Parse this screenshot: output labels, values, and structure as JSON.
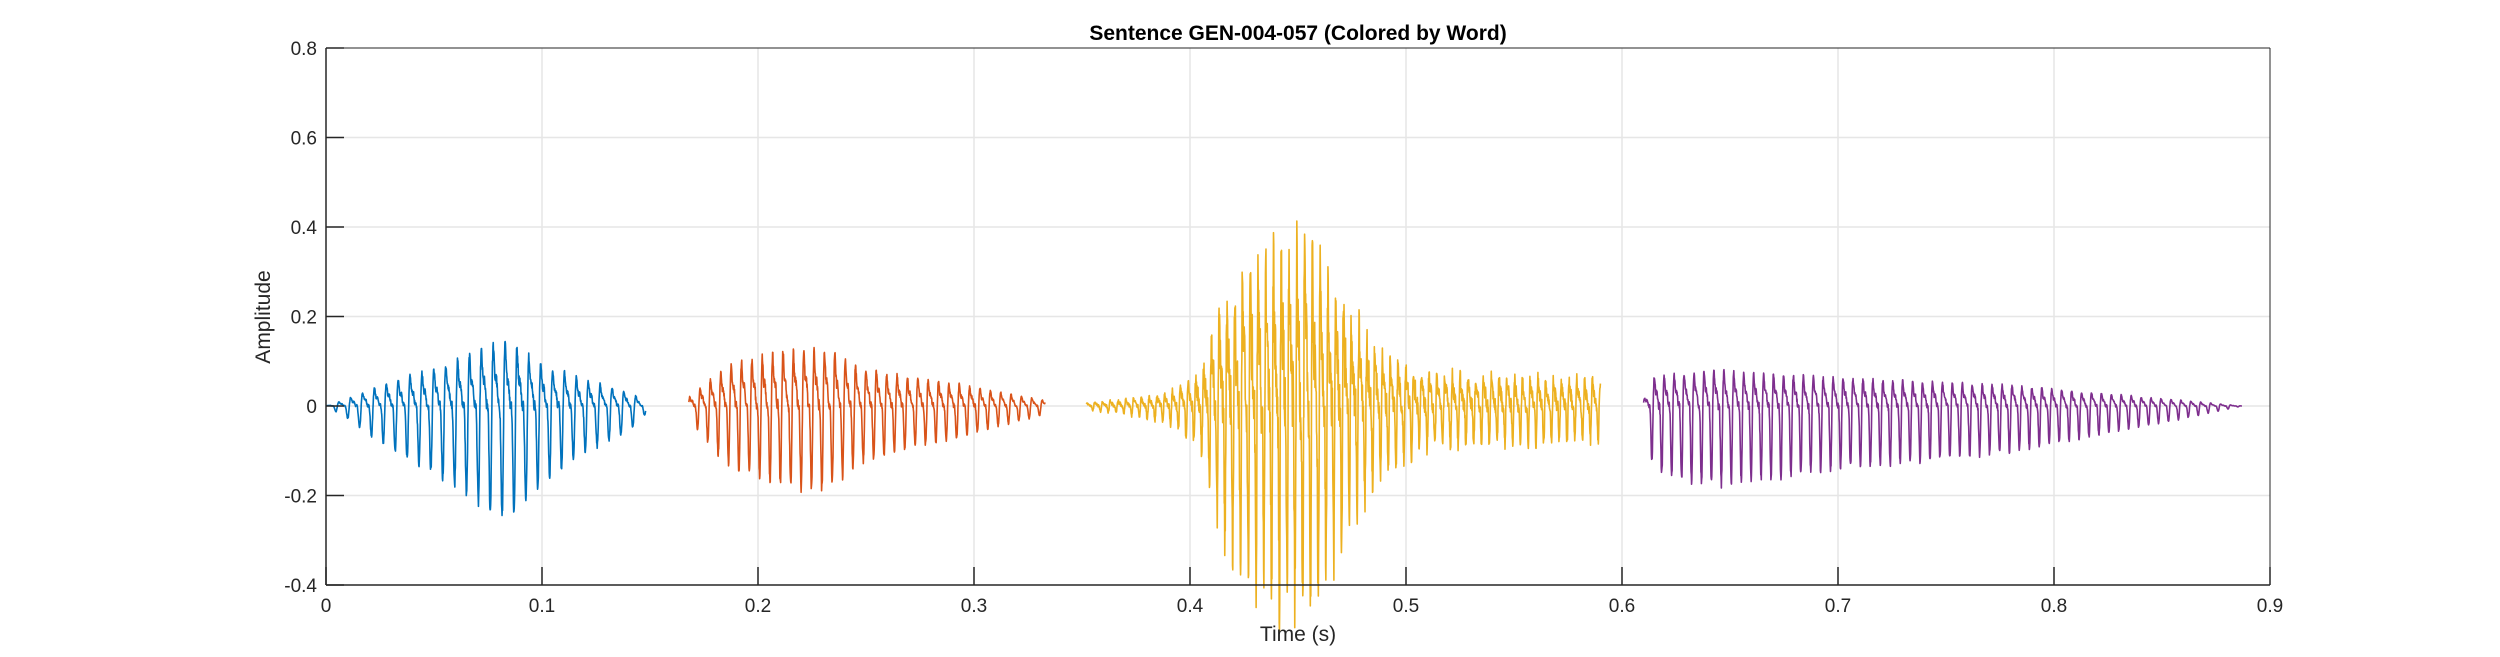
{
  "chart_data": {
    "type": "line",
    "title": "Sentence GEN-004-057 (Colored by Word)",
    "xlabel": "Time (s)",
    "ylabel": "Amplitude",
    "xlim": [
      0,
      0.9
    ],
    "ylim": [
      -0.4,
      0.8
    ],
    "xticks": [
      0,
      0.1,
      0.2,
      0.3,
      0.4,
      0.5,
      0.6,
      0.7,
      0.8,
      0.9
    ],
    "xtick_labels": [
      "0",
      "0.1",
      "0.2",
      "0.3",
      "0.4",
      "0.5",
      "0.6",
      "0.7",
      "0.8",
      "0.9"
    ],
    "yticks": [
      -0.4,
      -0.2,
      0,
      0.2,
      0.4,
      0.6,
      0.8
    ],
    "ytick_labels": [
      "-0.4",
      "-0.2",
      "0",
      "0.2",
      "0.4",
      "0.6",
      "0.8"
    ],
    "grid": true,
    "legend": "none",
    "series": [
      {
        "color": "#0072BD",
        "x_range": [
          0.0,
          0.148
        ],
        "envelope": [
          [
            0.0,
            0.0
          ],
          [
            0.01,
            0.03
          ],
          [
            0.02,
            0.07
          ],
          [
            0.04,
            0.13
          ],
          [
            0.06,
            0.19
          ],
          [
            0.08,
            0.27
          ],
          [
            0.09,
            0.25
          ],
          [
            0.1,
            0.18
          ],
          [
            0.12,
            0.11
          ],
          [
            0.14,
            0.06
          ],
          [
            0.148,
            0.02
          ]
        ],
        "pos_scale": 0.82,
        "cycle_s": 0.0055
      },
      {
        "color": "#D95319",
        "x_range": [
          0.168,
          0.333
        ],
        "envelope": [
          [
            0.168,
            0.03
          ],
          [
            0.18,
            0.11
          ],
          [
            0.19,
            0.15
          ],
          [
            0.21,
            0.19
          ],
          [
            0.23,
            0.2
          ],
          [
            0.25,
            0.13
          ],
          [
            0.27,
            0.1
          ],
          [
            0.29,
            0.08
          ],
          [
            0.31,
            0.05
          ],
          [
            0.333,
            0.02
          ]
        ],
        "pos_scale": 1.0,
        "cycle_s": 0.0048
      },
      {
        "color": "#EDB120",
        "x_range": [
          0.352,
          0.59
        ],
        "envelope": [
          [
            0.352,
            0.01
          ],
          [
            0.37,
            0.02
          ],
          [
            0.39,
            0.04
          ],
          [
            0.405,
            0.1
          ],
          [
            0.415,
            0.32
          ],
          [
            0.43,
            0.42
          ],
          [
            0.445,
            0.48
          ],
          [
            0.455,
            0.46
          ],
          [
            0.47,
            0.33
          ],
          [
            0.49,
            0.15
          ],
          [
            0.51,
            0.1
          ],
          [
            0.55,
            0.09
          ],
          [
            0.59,
            0.08
          ]
        ],
        "pos_scale": 1.1,
        "cycle_s": 0.0036,
        "noise": 0.35
      },
      {
        "color": "#7E2F8E",
        "x_range": [
          0.61,
          0.887
        ],
        "envelope": [
          [
            0.61,
            0.03
          ],
          [
            0.615,
            0.16
          ],
          [
            0.64,
            0.19
          ],
          [
            0.67,
            0.17
          ],
          [
            0.7,
            0.15
          ],
          [
            0.74,
            0.13
          ],
          [
            0.78,
            0.11
          ],
          [
            0.8,
            0.09
          ],
          [
            0.83,
            0.06
          ],
          [
            0.86,
            0.03
          ],
          [
            0.887,
            0.0
          ]
        ],
        "pos_scale": 0.65,
        "cycle_s": 0.0046
      }
    ]
  }
}
